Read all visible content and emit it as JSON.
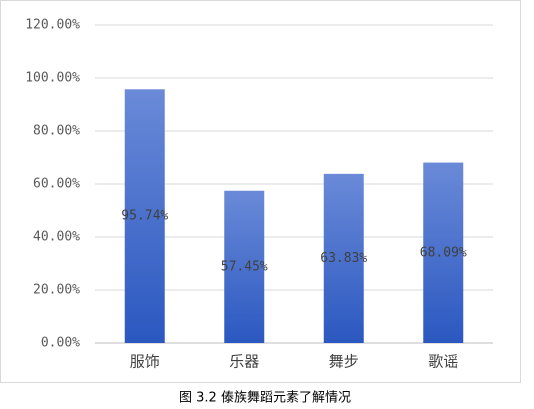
{
  "chart_data": {
    "type": "bar",
    "title": "图 3.2 傣族舞蹈元素了解情况",
    "categories": [
      "服饰",
      "乐器",
      "舞步",
      "歌谣"
    ],
    "values": [
      95.74,
      57.45,
      63.83,
      68.09
    ],
    "value_labels": [
      "95.74%",
      "57.45%",
      "63.83%",
      "68.09%"
    ],
    "color": "#3f68c6",
    "ylim": [
      0,
      120
    ],
    "yticks": [
      {
        "value": 0,
        "label": "0.00%"
      },
      {
        "value": 20,
        "label": "20.00%"
      },
      {
        "value": 40,
        "label": "40.00%"
      },
      {
        "value": 60,
        "label": "60.00%"
      },
      {
        "value": 80,
        "label": "80.00%"
      },
      {
        "value": 100,
        "label": "100.00%"
      },
      {
        "value": 120,
        "label": "120.00%"
      }
    ],
    "grid": true
  }
}
